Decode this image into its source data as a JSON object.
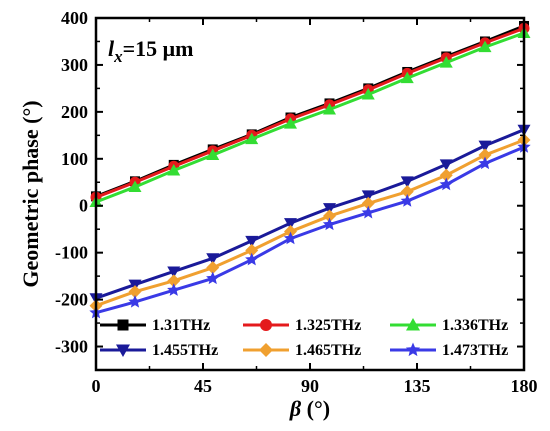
{
  "chart_data": {
    "type": "line",
    "annotation": {
      "main": "l",
      "sub": "x",
      "rest": "=15 μm"
    },
    "xlabel": {
      "symbol": "β",
      "unit": " (°)"
    },
    "ylabel": "Geometric phase (°)",
    "xlim": [
      0,
      180
    ],
    "ylim": [
      -350,
      400
    ],
    "xticks": [
      "0",
      "45",
      "90",
      "135",
      "180"
    ],
    "yticks": [
      "400",
      "300",
      "200",
      "100",
      "0",
      "-100",
      "-200",
      "-300"
    ],
    "x": [
      0,
      16.4,
      32.7,
      49.1,
      65.5,
      81.8,
      98.2,
      114.5,
      130.9,
      147.3,
      163.6,
      180
    ],
    "series": [
      {
        "name": "1.31THz",
        "color": "#000000",
        "marker": "square",
        "values": [
          20,
          52,
          87,
          120,
          152,
          188,
          218,
          250,
          285,
          318,
          350,
          383
        ]
      },
      {
        "name": "1.325THz",
        "color": "#e41a1c",
        "marker": "circle",
        "values": [
          18,
          50,
          84,
          117,
          150,
          185,
          215,
          247,
          282,
          315,
          347,
          378
        ]
      },
      {
        "name": "1.336THz",
        "color": "#33dd33",
        "marker": "triangle-up",
        "values": [
          8,
          40,
          75,
          108,
          142,
          175,
          205,
          237,
          272,
          305,
          338,
          368
        ]
      },
      {
        "name": "1.455THz",
        "color": "#1a1a99",
        "marker": "triangle-down",
        "values": [
          -197,
          -168,
          -140,
          -112,
          -75,
          -37,
          -5,
          22,
          52,
          88,
          128,
          162
        ]
      },
      {
        "name": "1.465THz",
        "color": "#f0a030",
        "marker": "diamond",
        "values": [
          -213,
          -183,
          -160,
          -132,
          -95,
          -55,
          -22,
          5,
          30,
          65,
          108,
          140
        ]
      },
      {
        "name": "1.473THz",
        "color": "#3a3ae6",
        "marker": "star",
        "values": [
          -228,
          -205,
          -180,
          -155,
          -115,
          -70,
          -40,
          -15,
          10,
          45,
          90,
          125
        ]
      }
    ],
    "legend_position": "bottom"
  }
}
